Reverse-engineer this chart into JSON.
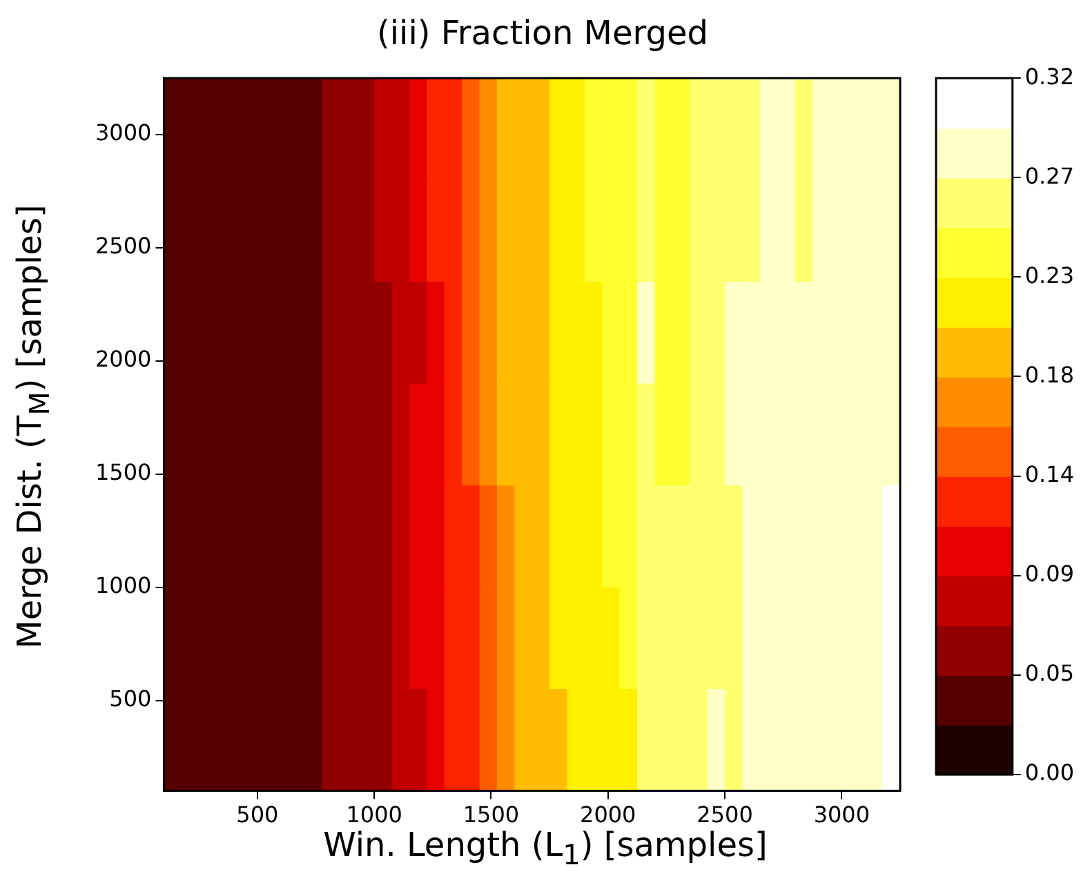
{
  "chart_data": {
    "type": "heatmap",
    "title": "(iii) Fraction Merged",
    "xlabel": "Win. Length (L$_{1}$) [samples]",
    "ylabel": "Merge Dist. (T$_{M}$) [samples]",
    "xlim": [
      100,
      3250
    ],
    "ylim": [
      100,
      3250
    ],
    "xticks": [
      500,
      1000,
      1500,
      2000,
      2500,
      3000
    ],
    "yticks": [
      500,
      1000,
      1500,
      2000,
      2500,
      3000
    ],
    "clim": [
      0,
      0.32
    ],
    "cticks": [
      {
        "value": 0,
        "label": "0.00"
      },
      {
        "value": 0.0457,
        "label": "0.05"
      },
      {
        "value": 0.0914,
        "label": "0.09"
      },
      {
        "value": 0.1371,
        "label": "0.14"
      },
      {
        "value": 0.1829,
        "label": "0.18"
      },
      {
        "value": 0.2286,
        "label": "0.23"
      },
      {
        "value": 0.2743,
        "label": "0.27"
      },
      {
        "value": 0.32,
        "label": "0.32"
      }
    ],
    "colors": [
      "#1e0000",
      "#550000",
      "#900000",
      "#c00000",
      "#e80000",
      "#ff2400",
      "#ff5c00",
      "#ff8c00",
      "#ffbc00",
      "#fff000",
      "#ffff30",
      "#ffff70",
      "#ffffc8",
      "#ffffff"
    ],
    "cells": [
      [
        0.034,
        0.034,
        0.034,
        0.034,
        0.034,
        0.034,
        0.034,
        0.034,
        0.034,
        0.057,
        0.057,
        0.057,
        0.08,
        0.08,
        0.103,
        0.126,
        0.126,
        0.149,
        0.171,
        0.194,
        0.194,
        0.194,
        0.217,
        0.217,
        0.24,
        0.24,
        0.24,
        0.263,
        0.24,
        0.24,
        0.263,
        0.263,
        0.263,
        0.263,
        0.286,
        0.286,
        0.263,
        0.286,
        0.286,
        0.286,
        0.286,
        0.286
      ],
      [
        0.034,
        0.034,
        0.034,
        0.034,
        0.034,
        0.034,
        0.034,
        0.034,
        0.034,
        0.057,
        0.057,
        0.057,
        0.08,
        0.08,
        0.103,
        0.126,
        0.126,
        0.149,
        0.171,
        0.194,
        0.194,
        0.194,
        0.217,
        0.217,
        0.24,
        0.24,
        0.24,
        0.263,
        0.24,
        0.24,
        0.263,
        0.263,
        0.263,
        0.263,
        0.286,
        0.286,
        0.263,
        0.286,
        0.286,
        0.286,
        0.286,
        0.286
      ],
      [
        0.034,
        0.034,
        0.034,
        0.034,
        0.034,
        0.034,
        0.034,
        0.034,
        0.034,
        0.057,
        0.057,
        0.057,
        0.057,
        0.08,
        0.08,
        0.103,
        0.126,
        0.149,
        0.171,
        0.194,
        0.194,
        0.194,
        0.217,
        0.217,
        0.217,
        0.24,
        0.24,
        0.286,
        0.24,
        0.24,
        0.263,
        0.263,
        0.286,
        0.286,
        0.286,
        0.286,
        0.286,
        0.286,
        0.286,
        0.286,
        0.286,
        0.286
      ],
      [
        0.034,
        0.034,
        0.034,
        0.034,
        0.034,
        0.034,
        0.034,
        0.034,
        0.034,
        0.057,
        0.057,
        0.057,
        0.057,
        0.08,
        0.103,
        0.103,
        0.126,
        0.149,
        0.171,
        0.194,
        0.194,
        0.194,
        0.217,
        0.217,
        0.217,
        0.24,
        0.24,
        0.263,
        0.24,
        0.24,
        0.263,
        0.263,
        0.286,
        0.286,
        0.286,
        0.286,
        0.286,
        0.286,
        0.286,
        0.286,
        0.286,
        0.286
      ],
      [
        0.034,
        0.034,
        0.034,
        0.034,
        0.034,
        0.034,
        0.034,
        0.034,
        0.034,
        0.057,
        0.057,
        0.057,
        0.057,
        0.08,
        0.103,
        0.103,
        0.126,
        0.126,
        0.149,
        0.171,
        0.194,
        0.194,
        0.217,
        0.217,
        0.217,
        0.24,
        0.24,
        0.263,
        0.263,
        0.263,
        0.263,
        0.263,
        0.263,
        0.286,
        0.286,
        0.286,
        0.286,
        0.286,
        0.286,
        0.286,
        0.286,
        0.309
      ],
      [
        0.034,
        0.034,
        0.034,
        0.034,
        0.034,
        0.034,
        0.034,
        0.034,
        0.034,
        0.057,
        0.057,
        0.057,
        0.057,
        0.08,
        0.103,
        0.103,
        0.126,
        0.126,
        0.149,
        0.171,
        0.194,
        0.194,
        0.217,
        0.217,
        0.217,
        0.217,
        0.24,
        0.263,
        0.263,
        0.263,
        0.263,
        0.263,
        0.263,
        0.286,
        0.286,
        0.286,
        0.286,
        0.286,
        0.286,
        0.286,
        0.286,
        0.309
      ],
      [
        0.034,
        0.034,
        0.034,
        0.034,
        0.034,
        0.034,
        0.034,
        0.034,
        0.034,
        0.057,
        0.057,
        0.057,
        0.057,
        0.08,
        0.08,
        0.103,
        0.126,
        0.126,
        0.149,
        0.171,
        0.194,
        0.194,
        0.194,
        0.217,
        0.217,
        0.217,
        0.217,
        0.263,
        0.263,
        0.263,
        0.263,
        0.286,
        0.263,
        0.286,
        0.286,
        0.286,
        0.286,
        0.286,
        0.286,
        0.286,
        0.286,
        0.309
      ]
    ]
  }
}
